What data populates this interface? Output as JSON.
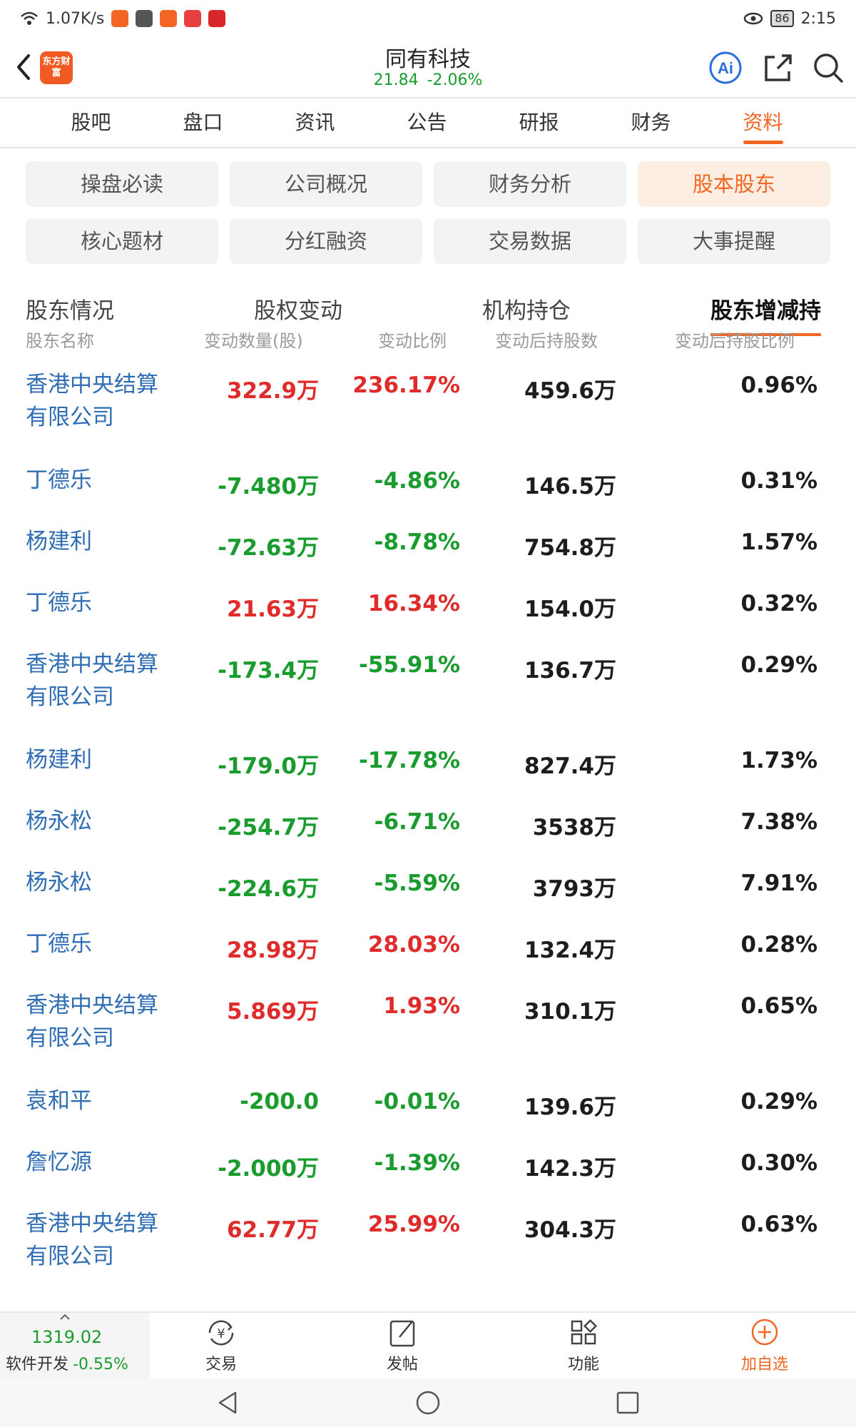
{
  "status_bar": {
    "network_speed": "1.07K/s",
    "battery": "86",
    "time": "2:15"
  },
  "header": {
    "logo_text": "东方财富",
    "stock_name": "同有科技",
    "price": "21.84",
    "change_pct": "-2.06%",
    "ai_label": "Ai"
  },
  "main_tabs": [
    "股吧",
    "盘口",
    "资讯",
    "公告",
    "研报",
    "财务",
    "资料"
  ],
  "main_tab_active": "资料",
  "categories": [
    "操盘必读",
    "公司概况",
    "财务分析",
    "股本股东",
    "核心题材",
    "分红融资",
    "交易数据",
    "大事提醒"
  ],
  "category_active": "股本股东",
  "sub_tabs": [
    "股东情况",
    "股权变动",
    "机构持仓",
    "股东增减持"
  ],
  "sub_tab_active": "股东增减持",
  "table": {
    "headers": [
      "股东名称",
      "变动数量(股)",
      "变动比例",
      "变动后持股数",
      "变动后持股比例"
    ],
    "rows": [
      {
        "name": "香港中央结算有限公司",
        "change": "322.9万",
        "ratio": "236.17%",
        "after": "459.6万",
        "pct": "0.96%",
        "dir": "up"
      },
      {
        "name": "丁德乐",
        "change": "-7.480万",
        "ratio": "-4.86%",
        "after": "146.5万",
        "pct": "0.31%",
        "dir": "down"
      },
      {
        "name": "杨建利",
        "change": "-72.63万",
        "ratio": "-8.78%",
        "after": "754.8万",
        "pct": "1.57%",
        "dir": "down"
      },
      {
        "name": "丁德乐",
        "change": "21.63万",
        "ratio": "16.34%",
        "after": "154.0万",
        "pct": "0.32%",
        "dir": "up"
      },
      {
        "name": "香港中央结算有限公司",
        "change": "-173.4万",
        "ratio": "-55.91%",
        "after": "136.7万",
        "pct": "0.29%",
        "dir": "down"
      },
      {
        "name": "杨建利",
        "change": "-179.0万",
        "ratio": "-17.78%",
        "after": "827.4万",
        "pct": "1.73%",
        "dir": "down"
      },
      {
        "name": "杨永松",
        "change": "-254.7万",
        "ratio": "-6.71%",
        "after": "3538万",
        "pct": "7.38%",
        "dir": "down"
      },
      {
        "name": "杨永松",
        "change": "-224.6万",
        "ratio": "-5.59%",
        "after": "3793万",
        "pct": "7.91%",
        "dir": "down"
      },
      {
        "name": "丁德乐",
        "change": "28.98万",
        "ratio": "28.03%",
        "after": "132.4万",
        "pct": "0.28%",
        "dir": "up"
      },
      {
        "name": "香港中央结算有限公司",
        "change": "5.869万",
        "ratio": "1.93%",
        "after": "310.1万",
        "pct": "0.65%",
        "dir": "up"
      },
      {
        "name": "袁和平",
        "change": "-200.0",
        "ratio": "-0.01%",
        "after": "139.6万",
        "pct": "0.29%",
        "dir": "down"
      },
      {
        "name": "詹忆源",
        "change": "-2.000万",
        "ratio": "-1.39%",
        "after": "142.3万",
        "pct": "0.30%",
        "dir": "down"
      },
      {
        "name": "香港中央结算有限公司",
        "change": "62.77万",
        "ratio": "25.99%",
        "after": "304.3万",
        "pct": "0.63%",
        "dir": "up"
      }
    ]
  },
  "bottom_bar": {
    "index_value": "1319.02",
    "index_name": "软件开发",
    "index_change": "-0.55%",
    "nav": [
      "交易",
      "发帖",
      "功能",
      "加自选"
    ]
  },
  "colors": {
    "accent": "#f26522",
    "up": "#e02b2b",
    "down": "#1a9b2e",
    "link": "#2f6db5"
  }
}
